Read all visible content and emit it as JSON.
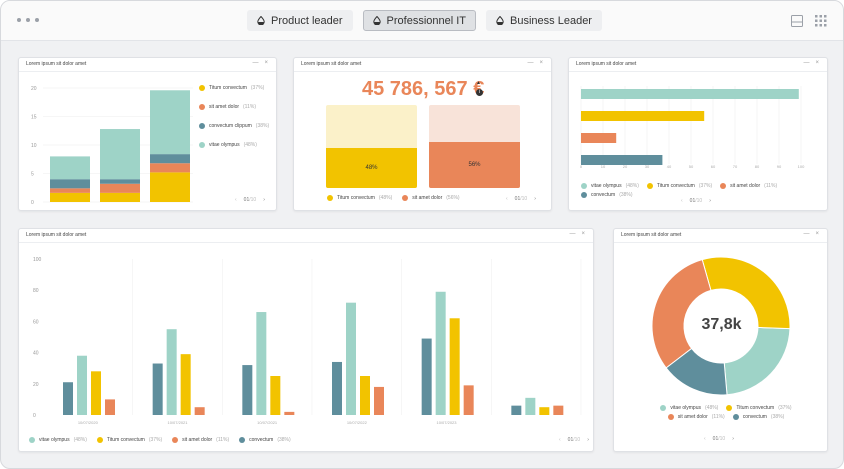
{
  "colors": {
    "teal": "#9ed3c7",
    "yellow": "#f2c300",
    "orange": "#e98659",
    "slate": "#5f8e9c",
    "kpi_orange": "#e98659",
    "pale_yellow": "#fbf1c9",
    "pale_orange": "#f8e3d9"
  },
  "tabs": [
    {
      "label": "Product leader",
      "icon": "drop-icon",
      "active": false
    },
    {
      "label": "Professionnel IT",
      "icon": "drop-icon",
      "active": true
    },
    {
      "label": "Business Leader",
      "icon": "drop-icon",
      "active": false
    }
  ],
  "card_title": "Lorem ipsum sit dolor amet",
  "ctrl_min": "—",
  "ctrl_close": "×",
  "pager": {
    "prev": "‹",
    "page": "01",
    "total": "/10",
    "next": "›"
  },
  "card1": {
    "legend": [
      {
        "label": "Titum convectum",
        "pct": "(37%)",
        "color": "#f2c300"
      },
      {
        "label": "sit amet dolor",
        "pct": "(11%)",
        "color": "#e98659"
      },
      {
        "label": "convectum clippum",
        "pct": "(38%)",
        "color": "#5f8e9c"
      },
      {
        "label": "vitae olympus",
        "pct": "(48%)",
        "color": "#9ed3c7"
      }
    ]
  },
  "card2": {
    "kpi": "45 786, 567 €",
    "up_arrow": "▲",
    "info": "i",
    "bar1_pct": "48%",
    "bar2_pct": "56%",
    "bar1_fill": 0.48,
    "bar2_fill": 0.56,
    "legend": [
      {
        "label": "Titum convectum",
        "pct": "(48%)",
        "color": "#f2c300"
      },
      {
        "label": "sit amet dolor",
        "pct": "(56%)",
        "color": "#e98659"
      }
    ]
  },
  "card3": {
    "legend": [
      {
        "label": "vitae olympus",
        "pct": "(48%)",
        "color": "#9ed3c7"
      },
      {
        "label": "Titum convectum",
        "pct": "(37%)",
        "color": "#f2c300"
      },
      {
        "label": "sit amet dolor",
        "pct": "(11%)",
        "color": "#e98659"
      },
      {
        "label": "convectum",
        "pct": "(38%)",
        "color": "#5f8e9c"
      }
    ]
  },
  "card4": {
    "legend": [
      {
        "label": "vitae olympus",
        "pct": "(48%)",
        "color": "#9ed3c7"
      },
      {
        "label": "Titum convectum",
        "pct": "(37%)",
        "color": "#f2c300"
      },
      {
        "label": "sit amet dolor",
        "pct": "(11%)",
        "color": "#e98659"
      },
      {
        "label": "convectum",
        "pct": "(38%)",
        "color": "#5f8e9c"
      }
    ]
  },
  "card5": {
    "center": "37,8k",
    "legend": [
      {
        "label": "vitae olympus",
        "pct": "(48%)",
        "color": "#9ed3c7"
      },
      {
        "label": "Titum convectum",
        "pct": "(37%)",
        "color": "#f2c300"
      },
      {
        "label": "sit amet dolor",
        "pct": "(11%)",
        "color": "#e98659"
      },
      {
        "label": "convectum",
        "pct": "(38%)",
        "color": "#5f8e9c"
      }
    ]
  },
  "chart_data": [
    {
      "type": "bar",
      "stacked": true,
      "categories": [
        "",
        "",
        ""
      ],
      "yticks": [
        "20",
        "15",
        "10",
        "5",
        "0"
      ],
      "ylim": [
        0,
        25
      ],
      "series": [
        {
          "name": "Titum convectum",
          "values": [
            2,
            2,
            6.5
          ]
        },
        {
          "name": "sit amet dolor",
          "values": [
            1,
            2,
            2
          ]
        },
        {
          "name": "convectum clippum",
          "values": [
            2,
            1,
            2
          ]
        },
        {
          "name": "vitae olympus",
          "values": [
            5,
            11,
            14
          ]
        }
      ]
    },
    {
      "type": "bar",
      "orientation": "horizontal",
      "categories": [
        "vitae olympus",
        "Titum convectum",
        "sit amet dolor",
        "convectum"
      ],
      "values": [
        99,
        56,
        16,
        37
      ],
      "xlim": [
        0,
        100
      ],
      "xticks": [
        "0",
        "10",
        "20",
        "30",
        "40",
        "50",
        "60",
        "70",
        "80",
        "90",
        "100"
      ]
    },
    {
      "type": "bar",
      "categories": [
        "10/07/2020",
        "10/07/2021",
        "10/07/2021",
        "10/07/2022",
        "10/07/2023",
        ""
      ],
      "yticks": [
        "100",
        "80",
        "60",
        "40",
        "20",
        "0"
      ],
      "ylim": [
        0,
        100
      ],
      "series": [
        {
          "name": "convectum",
          "values": [
            21,
            33,
            32,
            34,
            49,
            6
          ]
        },
        {
          "name": "vitae olympus",
          "values": [
            38,
            55,
            66,
            72,
            79,
            11
          ]
        },
        {
          "name": "Titum convectum",
          "values": [
            28,
            39,
            25,
            25,
            62,
            5
          ]
        },
        {
          "name": "sit amet dolor",
          "values": [
            10,
            5,
            2,
            18,
            19,
            6
          ]
        }
      ]
    },
    {
      "type": "pie",
      "donut": true,
      "labels": [
        "vitae olympus",
        "Titum convectum",
        "sit amet dolor",
        "convectum"
      ],
      "values": [
        23,
        30,
        31,
        16
      ]
    }
  ]
}
